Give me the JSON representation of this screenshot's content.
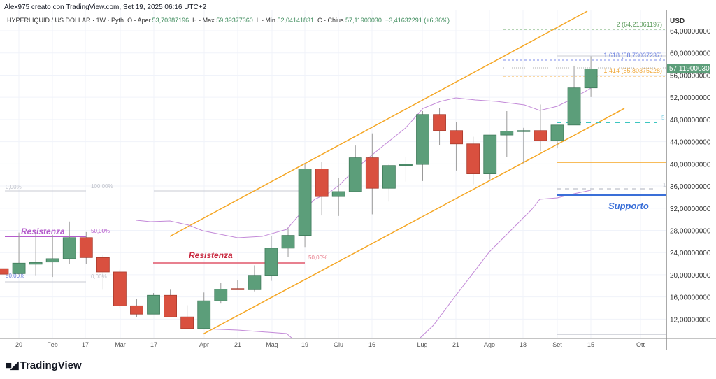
{
  "header": {
    "author_line": "Alex975 creato con TradingView.com, Set 19, 2025 06:16 UTC+2",
    "symbol": "HYPERLIQUID / US DOLLAR · 1W · Pyth",
    "open_label": "O - Aper.",
    "open": "53,70387196",
    "high_label": "H - Max.",
    "high": "59,39377360",
    "low_label": "L - Min.",
    "low": "52,04141831",
    "close_label": "C - Chius.",
    "close": "57,11900030",
    "change": "+3,41632291 (+6,36%)"
  },
  "price_axis": {
    "currency": "USD",
    "ticks": [
      "64,00000000",
      "60,00000000",
      "56,00000000",
      "52,00000000",
      "48,00000000",
      "44,00000000",
      "40,00000000",
      "36,00000000",
      "32,00000000",
      "28,00000000",
      "24,00000000",
      "20,00000000",
      "16,00000000",
      "12,00000000"
    ],
    "current_price": "57,11900030"
  },
  "time_axis": {
    "ticks": [
      "20",
      "Feb",
      "17",
      "Mar",
      "17",
      "Apr",
      "21",
      "Mag",
      "19",
      "Giu",
      "16",
      "Lug",
      "21",
      "Ago",
      "18",
      "Set",
      "15",
      "Ott"
    ]
  },
  "annotations": {
    "resistance_1": "Resistenza",
    "resistance_2": "Resistenza",
    "support": "Supporto",
    "fib_left_0_top": "0,00%",
    "fib_left_100": "100,00%",
    "fib_left_50_purple": "50,00%",
    "fib_left_50_blue": "50,00%",
    "fib_left_0_bottom": "0,00%",
    "fib_mid_50": "50,00%",
    "fib_ext_2": "2 (64,21061197)",
    "fib_ext_1618": "1,618 (58,73037237)",
    "fib_ext_1414": "1,414 (55,80375228)",
    "cut_label_teal": "5",
    "cut_label_grey": "1"
  },
  "colors": {
    "up": "#5c9e7a",
    "down": "#d9503f",
    "channel": "#f5a623",
    "band": "#c38ad8",
    "support": "#3a6fd8",
    "teal": "#3cc6c0"
  },
  "chart_data": {
    "type": "candlestick",
    "interval": "1W",
    "columns": [
      "open",
      "high",
      "low",
      "close"
    ],
    "candles": [
      [
        21.1,
        21.1,
        20.1,
        20.1
      ],
      [
        20.2,
        27.6,
        20.0,
        22.1
      ],
      [
        21.9,
        27.6,
        19.9,
        22.2
      ],
      [
        22.3,
        27.2,
        19.6,
        22.9
      ],
      [
        22.9,
        29.6,
        22.0,
        26.7
      ],
      [
        26.7,
        27.7,
        21.9,
        23.1
      ],
      [
        23.1,
        23.5,
        17.3,
        20.5
      ],
      [
        20.5,
        20.9,
        14.0,
        14.4
      ],
      [
        14.4,
        15.6,
        12.3,
        12.9
      ],
      [
        12.9,
        16.7,
        12.9,
        16.3
      ],
      [
        16.3,
        17.3,
        12.4,
        12.4
      ],
      [
        12.4,
        14.5,
        10.2,
        10.3
      ],
      [
        10.3,
        16.8,
        10.2,
        15.3
      ],
      [
        15.3,
        18.6,
        14.8,
        17.4
      ],
      [
        17.5,
        19.0,
        17.3,
        17.3
      ],
      [
        17.3,
        21.7,
        17.0,
        19.9
      ],
      [
        19.9,
        27.0,
        18.9,
        24.8
      ],
      [
        24.8,
        28.4,
        23.2,
        27.1
      ],
      [
        27.1,
        40.0,
        25.0,
        39.1
      ],
      [
        39.1,
        40.3,
        30.7,
        34.1
      ],
      [
        34.1,
        37.5,
        30.6,
        35.0
      ],
      [
        35.0,
        43.3,
        35.0,
        41.1
      ],
      [
        41.1,
        45.5,
        30.9,
        35.6
      ],
      [
        35.6,
        39.9,
        33.2,
        39.7
      ],
      [
        39.7,
        41.2,
        36.8,
        39.9
      ],
      [
        39.9,
        49.5,
        36.9,
        48.9
      ],
      [
        48.9,
        50.1,
        43.4,
        46.0
      ],
      [
        46.0,
        47.6,
        38.8,
        43.6
      ],
      [
        43.6,
        44.9,
        36.3,
        38.2
      ],
      [
        38.2,
        45.2,
        37.2,
        45.2
      ],
      [
        45.2,
        49.5,
        41.3,
        45.9
      ],
      [
        45.9,
        46.5,
        40.1,
        46.0
      ],
      [
        46.0,
        50.7,
        42.3,
        44.2
      ],
      [
        44.2,
        47.0,
        42.8,
        47.0
      ],
      [
        47.0,
        57.7,
        47.0,
        53.7
      ],
      [
        53.7,
        59.39,
        52.04,
        57.12
      ]
    ]
  }
}
